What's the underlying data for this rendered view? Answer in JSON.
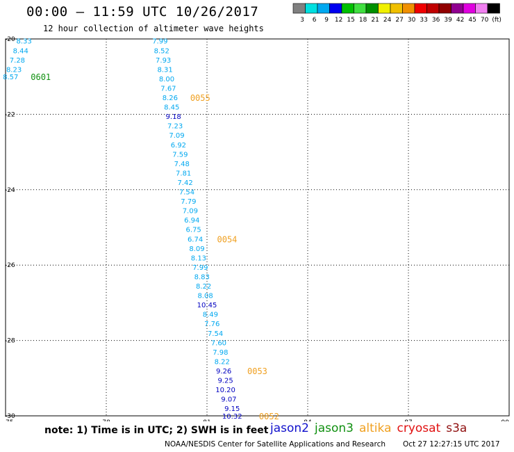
{
  "header": {
    "title": "00:00 – 11:59 UTC 10/26/2017",
    "subtitle": "12 hour collection of altimeter wave heights"
  },
  "footer": {
    "note": "note: 1) Time is in UTC; 2) SWH is in feet",
    "credit": "NOAA/NESDIS Center for Satellite Applications and Research",
    "timestamp": "Oct 27 12:27:15 UTC 2017"
  },
  "satellite_legend": [
    {
      "name": "jason2",
      "color": "#1010cc"
    },
    {
      "name": "jason3",
      "color": "#109010"
    },
    {
      "name": "altika",
      "color": "#f0a020"
    },
    {
      "name": "cryosat",
      "color": "#e01010"
    },
    {
      "name": "s3a",
      "color": "#901010"
    }
  ],
  "chart_data": {
    "type": "scatter",
    "xlim": [
      75,
      90
    ],
    "ylim": [
      -30,
      -20
    ],
    "xticks": [
      "75",
      "78",
      "81",
      "84",
      "87",
      "90"
    ],
    "yticks": [
      "-20",
      "-22",
      "-24",
      "-26",
      "-28",
      "-30"
    ],
    "grid": true,
    "colorbar": {
      "labels": [
        "3",
        "6",
        "9",
        "12",
        "15",
        "18",
        "21",
        "24",
        "27",
        "30",
        "33",
        "36",
        "39",
        "42",
        "45",
        "70",
        "(ft)"
      ],
      "colors": [
        "#808080",
        "#00e0e0",
        "#00a8f0",
        "#0000f0",
        "#00c000",
        "#40e040",
        "#009000",
        "#f0f000",
        "#f0c000",
        "#f09000",
        "#f00000",
        "#c00000",
        "#900000",
        "#900090",
        "#e000e0",
        "#f080f0",
        "#000000"
      ]
    },
    "points": [
      {
        "x": 75.55,
        "y": -20.05,
        "value": "8.33",
        "color": "#00a8f0"
      },
      {
        "x": 75.45,
        "y": -20.3,
        "value": "8.44",
        "color": "#00a8f0"
      },
      {
        "x": 75.35,
        "y": -20.55,
        "value": "7.28",
        "color": "#00a8f0"
      },
      {
        "x": 75.25,
        "y": -20.8,
        "value": "8.23",
        "color": "#00a8f0"
      },
      {
        "x": 75.15,
        "y": -21.0,
        "value": "8.57",
        "color": "#00a8f0"
      },
      {
        "x": 79.6,
        "y": -20.05,
        "value": "7.99",
        "color": "#00a8f0"
      },
      {
        "x": 79.65,
        "y": -20.3,
        "value": "8.52",
        "color": "#00a8f0"
      },
      {
        "x": 79.7,
        "y": -20.55,
        "value": "7.93",
        "color": "#00a8f0"
      },
      {
        "x": 79.75,
        "y": -20.8,
        "value": "8.31",
        "color": "#00a8f0"
      },
      {
        "x": 79.8,
        "y": -21.05,
        "value": "8.00",
        "color": "#00a8f0"
      },
      {
        "x": 79.85,
        "y": -21.3,
        "value": "7.67",
        "color": "#00a8f0"
      },
      {
        "x": 79.9,
        "y": -21.55,
        "value": "8.26",
        "color": "#00a8f0"
      },
      {
        "x": 79.95,
        "y": -21.8,
        "value": "8.45",
        "color": "#00a8f0"
      },
      {
        "x": 80.0,
        "y": -22.05,
        "value": "9.18",
        "color": "#0000c0"
      },
      {
        "x": 80.05,
        "y": -22.3,
        "value": "7.23",
        "color": "#00a8f0"
      },
      {
        "x": 80.1,
        "y": -22.55,
        "value": "7.09",
        "color": "#00a8f0"
      },
      {
        "x": 80.15,
        "y": -22.8,
        "value": "6.92",
        "color": "#00a8f0"
      },
      {
        "x": 80.2,
        "y": -23.05,
        "value": "7.59",
        "color": "#00a8f0"
      },
      {
        "x": 80.25,
        "y": -23.3,
        "value": "7.48",
        "color": "#00a8f0"
      },
      {
        "x": 80.3,
        "y": -23.55,
        "value": "7.81",
        "color": "#00a8f0"
      },
      {
        "x": 80.35,
        "y": -23.8,
        "value": "7.42",
        "color": "#00a8f0"
      },
      {
        "x": 80.4,
        "y": -24.05,
        "value": "7.54",
        "color": "#00a8f0"
      },
      {
        "x": 80.45,
        "y": -24.3,
        "value": "7.79",
        "color": "#00a8f0"
      },
      {
        "x": 80.5,
        "y": -24.55,
        "value": "7.09",
        "color": "#00a8f0"
      },
      {
        "x": 80.55,
        "y": -24.8,
        "value": "6.94",
        "color": "#00a8f0"
      },
      {
        "x": 80.6,
        "y": -25.05,
        "value": "6.75",
        "color": "#00a8f0"
      },
      {
        "x": 80.65,
        "y": -25.3,
        "value": "6.74",
        "color": "#00a8f0"
      },
      {
        "x": 80.7,
        "y": -25.55,
        "value": "8.09",
        "color": "#00a8f0"
      },
      {
        "x": 80.75,
        "y": -25.8,
        "value": "8.13",
        "color": "#00a8f0"
      },
      {
        "x": 80.8,
        "y": -26.05,
        "value": "7.99",
        "color": "#00a8f0"
      },
      {
        "x": 80.85,
        "y": -26.3,
        "value": "8.83",
        "color": "#00a8f0"
      },
      {
        "x": 80.9,
        "y": -26.55,
        "value": "8.22",
        "color": "#00a8f0"
      },
      {
        "x": 80.95,
        "y": -26.8,
        "value": "8.08",
        "color": "#00a8f0"
      },
      {
        "x": 81.0,
        "y": -27.05,
        "value": "10.45",
        "color": "#0000c0"
      },
      {
        "x": 81.1,
        "y": -27.3,
        "value": "8.49",
        "color": "#00a8f0"
      },
      {
        "x": 81.15,
        "y": -27.55,
        "value": "7.76",
        "color": "#00a8f0"
      },
      {
        "x": 81.25,
        "y": -27.8,
        "value": "7.54",
        "color": "#00a8f0"
      },
      {
        "x": 81.35,
        "y": -28.05,
        "value": "7.60",
        "color": "#00a8f0"
      },
      {
        "x": 81.4,
        "y": -28.3,
        "value": "7.98",
        "color": "#00a8f0"
      },
      {
        "x": 81.45,
        "y": -28.55,
        "value": "8.22",
        "color": "#00a8f0"
      },
      {
        "x": 81.5,
        "y": -28.8,
        "value": "9.26",
        "color": "#0000c0"
      },
      {
        "x": 81.55,
        "y": -29.05,
        "value": "9.25",
        "color": "#0000c0"
      },
      {
        "x": 81.55,
        "y": -29.3,
        "value": "10.20",
        "color": "#0000c0"
      },
      {
        "x": 81.65,
        "y": -29.55,
        "value": "9.07",
        "color": "#0000c0"
      },
      {
        "x": 81.75,
        "y": -29.8,
        "value": "9.15",
        "color": "#0000c0"
      },
      {
        "x": 81.75,
        "y": -30.0,
        "value": "10.32",
        "color": "#0000c0"
      }
    ],
    "pass_labels": [
      {
        "x": 75.75,
        "y": -21.0,
        "text": "0601",
        "color": "#109010"
      },
      {
        "x": 80.5,
        "y": -21.55,
        "text": "0055",
        "color": "#f0a020"
      },
      {
        "x": 81.3,
        "y": -25.3,
        "text": "0054",
        "color": "#f0a020"
      },
      {
        "x": 82.2,
        "y": -28.8,
        "text": "0053",
        "color": "#f0a020"
      },
      {
        "x": 82.55,
        "y": -30.0,
        "text": "0052",
        "color": "#f0a020"
      }
    ]
  }
}
